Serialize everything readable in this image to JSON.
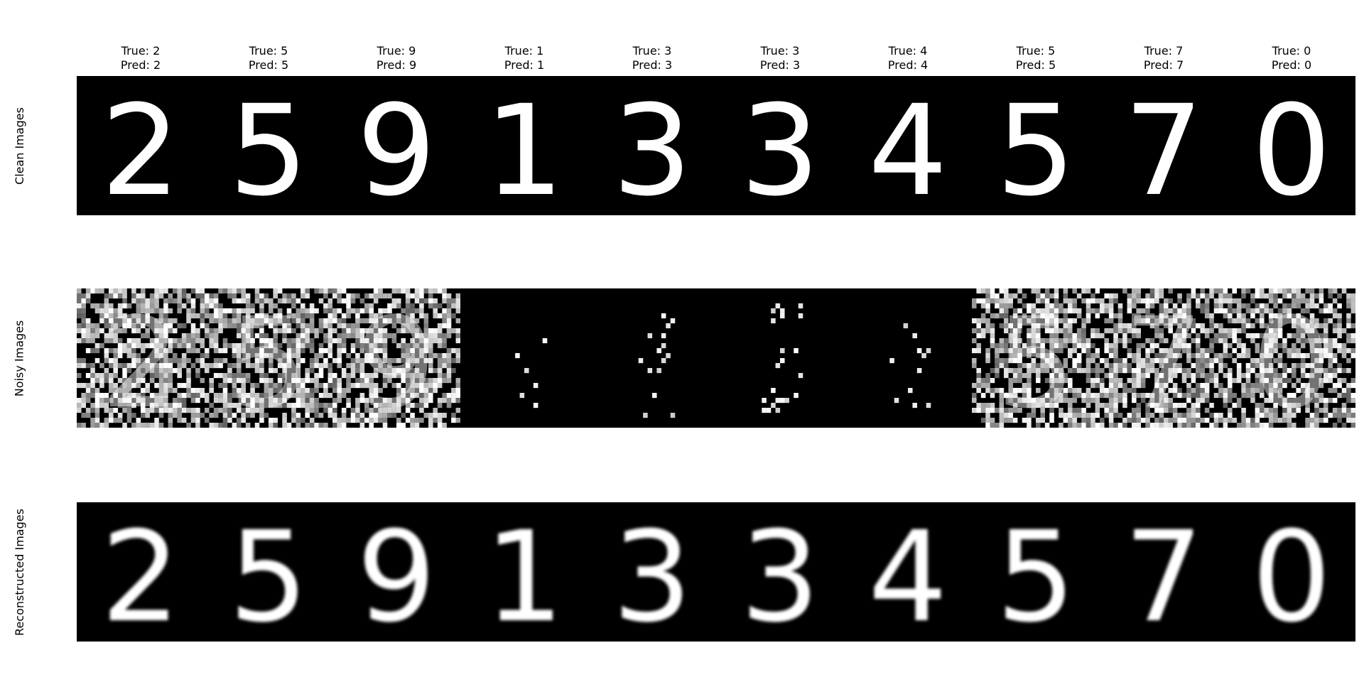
{
  "figure": {
    "columns": [
      {
        "true_label": "True: 2",
        "pred_label": "Pred: 2",
        "digit": "2",
        "noise": "high"
      },
      {
        "true_label": "True: 5",
        "pred_label": "Pred: 5",
        "digit": "5",
        "noise": "high"
      },
      {
        "true_label": "True: 9",
        "pred_label": "Pred: 9",
        "digit": "9",
        "noise": "high"
      },
      {
        "true_label": "True: 1",
        "pred_label": "Pred: 1",
        "digit": "1",
        "noise": "sparse"
      },
      {
        "true_label": "True: 3",
        "pred_label": "Pred: 3",
        "digit": "3",
        "noise": "sparse"
      },
      {
        "true_label": "True: 3",
        "pred_label": "Pred: 3",
        "digit": "3",
        "noise": "sparse"
      },
      {
        "true_label": "True: 4",
        "pred_label": "Pred: 4",
        "digit": "4",
        "noise": "sparse"
      },
      {
        "true_label": "True: 5",
        "pred_label": "Pred: 5",
        "digit": "5",
        "noise": "high"
      },
      {
        "true_label": "True: 7",
        "pred_label": "Pred: 7",
        "digit": "7",
        "noise": "high"
      },
      {
        "true_label": "True: 0",
        "pred_label": "Pred: 0",
        "digit": "0",
        "noise": "high"
      }
    ],
    "rows": [
      {
        "label": "Clean Images",
        "style": "clean"
      },
      {
        "label": "Noisy Images",
        "style": "noisy"
      },
      {
        "label": "Reconstructed Images",
        "style": "reconstructed"
      }
    ],
    "colors": {
      "background": "#000000",
      "foreground": "#ffffff",
      "page": "#ffffff"
    }
  }
}
